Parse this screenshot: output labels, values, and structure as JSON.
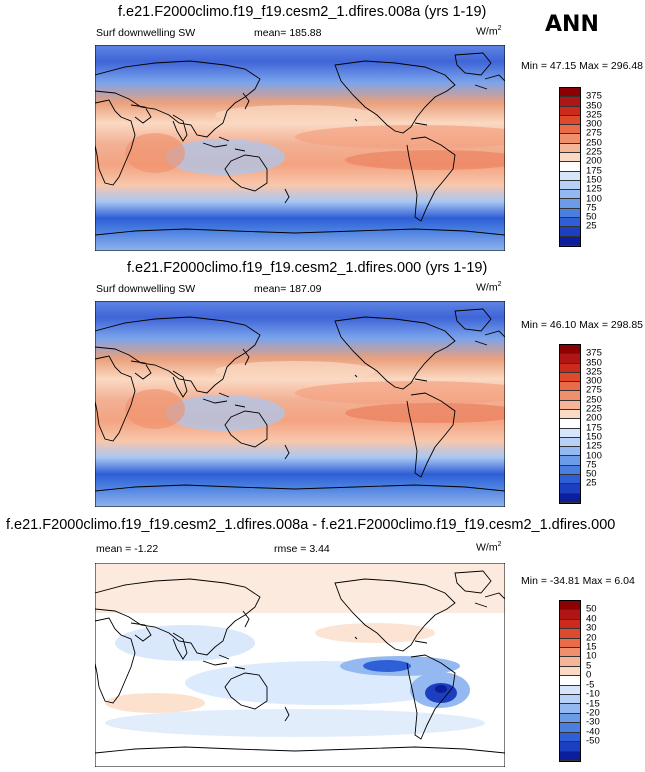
{
  "season": "ANN",
  "panels": [
    {
      "title": "f.e21.F2000climo.f19_f19.cesm2_1.dfires.008a (yrs 1-19)",
      "left_label": "Surf downwelling SW",
      "mean_label": "mean=",
      "mean_value": "185.88",
      "units": "W/m",
      "units_sup": "2",
      "min_label": "Min =",
      "min_value": "47.15",
      "max_label": "Max =",
      "max_value": "296.48"
    },
    {
      "title": "f.e21.F2000climo.f19_f19.cesm2_1.dfires.000 (yrs 1-19)",
      "left_label": "Surf downwelling SW",
      "mean_label": "mean=",
      "mean_value": "187.09",
      "units": "W/m",
      "units_sup": "2",
      "min_label": "Min =",
      "min_value": "46.10",
      "max_label": "Max =",
      "max_value": "298.85"
    },
    {
      "title": "f.e21.F2000climo.f19_f19.cesm2_1.dfires.008a - f.e21.F2000climo.f19_f19.cesm2_1.dfires.000",
      "left_label": "mean =",
      "mean_value": "-1.22",
      "rmse_label": "rmse =",
      "rmse_value": "3.44",
      "units": "W/m",
      "units_sup": "2",
      "min_label": "Min =",
      "min_value": "-34.81",
      "max_label": "Max =",
      "max_value": "6.04"
    }
  ],
  "colorbar_abs": {
    "labels": [
      "375",
      "350",
      "325",
      "300",
      "275",
      "250",
      "225",
      "200",
      "175",
      "150",
      "125",
      "100",
      "75",
      "50",
      "25"
    ],
    "colors": [
      "#8b0000",
      "#b01515",
      "#cc2a1c",
      "#df4a2d",
      "#ea6b48",
      "#f08f6b",
      "#f5b596",
      "#fbd9c3",
      "#ffffff",
      "#d5e6fb",
      "#b7d2f6",
      "#93b9f0",
      "#6c9ce8",
      "#4a7fe0",
      "#2e5fd6",
      "#1c3fc0",
      "#0b1f9c"
    ]
  },
  "colorbar_diff": {
    "labels": [
      "50",
      "40",
      "30",
      "20",
      "15",
      "10",
      "5",
      "0",
      "-5",
      "-10",
      "-15",
      "-20",
      "-30",
      "-40",
      "-50"
    ],
    "colors": [
      "#8b0000",
      "#b01515",
      "#cc2a1c",
      "#df4a2d",
      "#ea6b48",
      "#f08f6b",
      "#f5b596",
      "#fbd9c3",
      "#ffffff",
      "#d5e6fb",
      "#b7d2f6",
      "#93b9f0",
      "#6c9ce8",
      "#4a7fe0",
      "#2e5fd6",
      "#1c3fc0",
      "#0b1f9c"
    ]
  }
}
